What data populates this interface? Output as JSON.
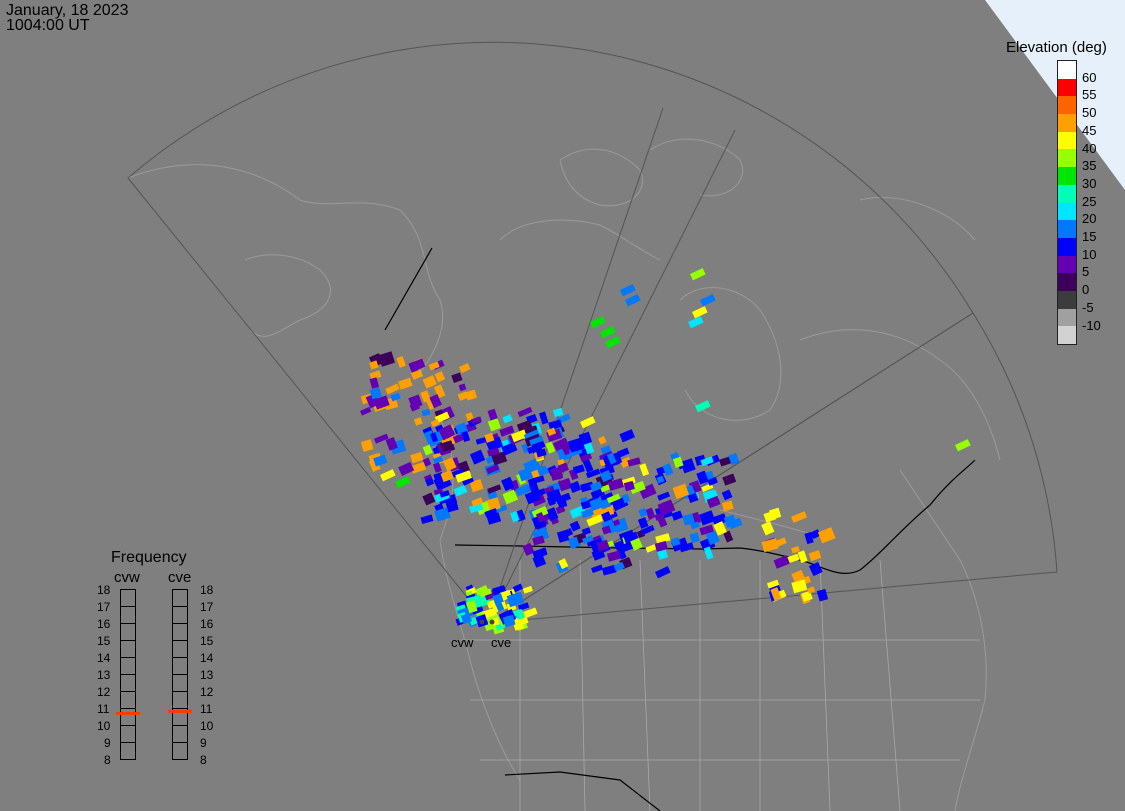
{
  "header": {
    "date": "January, 18 2023",
    "time": "1004:00 UT"
  },
  "map": {
    "background_color": "#7f7f7f",
    "coast_color": "#9a9a9a",
    "border_color": "#000000",
    "fov_color": "#555555",
    "radars": [
      {
        "code": "cvw",
        "label": "cvw"
      },
      {
        "code": "cve",
        "label": "cve"
      }
    ]
  },
  "elevation_legend": {
    "title": "Elevation (deg)",
    "levels": [
      {
        "label": "60",
        "color": "#ffffff"
      },
      {
        "label": "55",
        "color": "#ff0000"
      },
      {
        "label": "50",
        "color": "#ff6400"
      },
      {
        "label": "45",
        "color": "#ffa000"
      },
      {
        "label": "40",
        "color": "#ffff00"
      },
      {
        "label": "35",
        "color": "#96ff00"
      },
      {
        "label": "30",
        "color": "#00e600"
      },
      {
        "label": "25",
        "color": "#00ffb4"
      },
      {
        "label": "20",
        "color": "#00e6ff"
      },
      {
        "label": "15",
        "color": "#0078ff"
      },
      {
        "label": "10",
        "color": "#0000ff"
      },
      {
        "label": "5",
        "color": "#6400b4"
      },
      {
        "label": "0",
        "color": "#3c005a"
      },
      {
        "label": "-5",
        "color": "#3c3c3c"
      },
      {
        "label": "-10",
        "color": "#a0a0a0"
      },
      {
        "label": "",
        "color": "#d2d2d2"
      }
    ]
  },
  "frequency": {
    "title": "Frequency",
    "columns": [
      {
        "name": "cvw",
        "value_mhz": 10.7
      },
      {
        "name": "cve",
        "value_mhz": 10.8
      }
    ],
    "ticks": [
      "18",
      "17",
      "16",
      "15",
      "14",
      "13",
      "12",
      "11",
      "10",
      "9",
      "8"
    ],
    "marker_color": "#ff3c00"
  }
}
